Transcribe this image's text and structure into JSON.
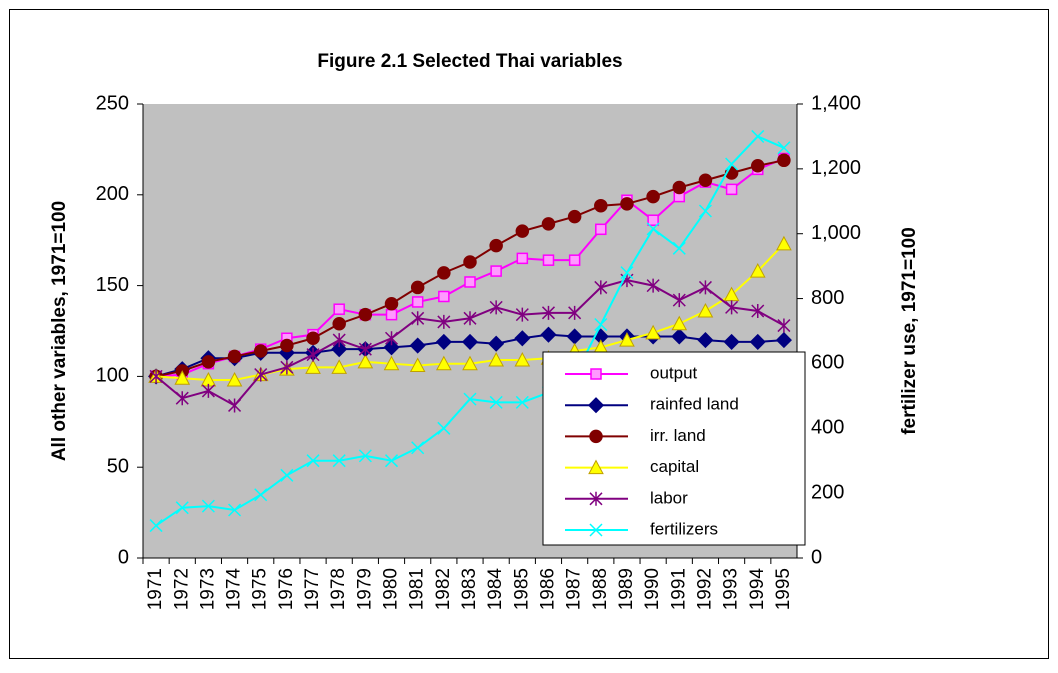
{
  "chart_data": {
    "type": "line",
    "title": "Figure 2.1 Selected Thai variables",
    "y_label": "All other variables, 1971=100",
    "y2_label": "fertilizer use, 1971=100",
    "categories": [
      "1971",
      "1972",
      "1973",
      "1974",
      "1975",
      "1976",
      "1977",
      "1978",
      "1979",
      "1980",
      "1981",
      "1982",
      "1983",
      "1984",
      "1985",
      "1986",
      "1987",
      "1988",
      "1989",
      "1990",
      "1991",
      "1992",
      "1993",
      "1994",
      "1995"
    ],
    "series": [
      {
        "name": "output",
        "color": "#ff00ff",
        "marker": "square",
        "values": [
          100,
          101,
          107,
          111,
          115,
          121,
          123,
          137,
          134,
          134,
          141,
          144,
          152,
          158,
          165,
          164,
          164,
          181,
          197,
          186,
          199,
          207,
          203,
          214,
          220
        ]
      },
      {
        "name": "rainfed land",
        "color": "#000080",
        "marker": "diamond",
        "values": [
          100,
          104,
          110,
          110,
          113,
          113,
          113,
          115,
          115,
          116,
          117,
          119,
          119,
          118,
          121,
          123,
          122,
          122,
          122,
          122,
          122,
          120,
          119,
          119,
          120
        ]
      },
      {
        "name": "irr. land",
        "color": "#800000",
        "marker": "circle",
        "values": [
          100,
          103,
          108,
          111,
          114,
          117,
          121,
          129,
          134,
          140,
          149,
          157,
          163,
          172,
          180,
          184,
          188,
          194,
          195,
          199,
          204,
          208,
          212,
          216,
          219
        ]
      },
      {
        "name": "capital",
        "color": "#ffff00",
        "marker": "triangle",
        "values": [
          100,
          99,
          98,
          98,
          101,
          104,
          105,
          105,
          108,
          107,
          106,
          107,
          107,
          109,
          109,
          110,
          114,
          116,
          120,
          124,
          129,
          136,
          145,
          158,
          173
        ]
      },
      {
        "name": "labor",
        "color": "#800080",
        "marker": "star",
        "values": [
          100,
          88,
          92,
          84,
          101,
          105,
          112,
          120,
          115,
          121,
          132,
          130,
          132,
          138,
          134,
          135,
          135,
          149,
          153,
          150,
          142,
          149,
          138,
          136,
          128
        ]
      },
      {
        "name": "fertilizers",
        "color": "#00ffff",
        "marker": "x",
        "axis": "y2",
        "values": [
          100,
          155,
          160,
          148,
          195,
          255,
          300,
          300,
          315,
          300,
          340,
          400,
          490,
          480,
          480,
          510,
          560,
          720,
          880,
          1015,
          955,
          1070,
          1215,
          1300,
          1265
        ]
      }
    ],
    "ylim": [
      0,
      250
    ],
    "yticks": [
      0,
      50,
      100,
      150,
      200,
      250
    ],
    "y2lim": [
      0,
      1400
    ],
    "y2ticks": [
      0,
      200,
      400,
      600,
      800,
      {
        "value": 1000,
        "label": "1,000"
      },
      {
        "value": 1200,
        "label": "1,200"
      },
      {
        "value": 1400,
        "label": "1,400"
      }
    ],
    "plot_background": "#c0c0c0",
    "legend": "lower right"
  }
}
